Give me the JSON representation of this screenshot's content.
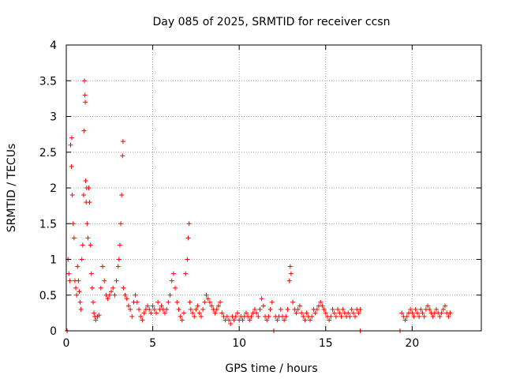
{
  "chart_data": {
    "type": "scatter",
    "title": "Day 085 of 2025, SRMTID for receiver ccsn",
    "xlabel": "GPS time / hours",
    "ylabel": "SRMTID / TECUs",
    "xlim": [
      0,
      24
    ],
    "ylim": [
      0,
      4
    ],
    "x_ticks": [
      0,
      5,
      10,
      15,
      20
    ],
    "x_tick_labels": [
      "0",
      "5",
      "10",
      "15",
      "20"
    ],
    "y_ticks": [
      0,
      0.5,
      1,
      1.5,
      2,
      2.5,
      3,
      3.5,
      4
    ],
    "y_tick_labels": [
      "0",
      "0.5",
      "1",
      "1.5",
      "2",
      "2.5",
      "3",
      "3.5",
      "4"
    ],
    "grid": true,
    "marker": "+",
    "color": "#ff0000",
    "series": [
      {
        "name": "SRMTID",
        "points": [
          [
            0.05,
            0.0
          ],
          [
            0.1,
            1.0
          ],
          [
            0.15,
            0.8
          ],
          [
            0.2,
            0.7
          ],
          [
            0.25,
            2.6
          ],
          [
            0.3,
            2.3
          ],
          [
            0.32,
            2.7
          ],
          [
            0.35,
            1.9
          ],
          [
            0.4,
            1.5
          ],
          [
            0.45,
            1.3
          ],
          [
            0.5,
            0.7
          ],
          [
            0.55,
            0.6
          ],
          [
            0.6,
            0.5
          ],
          [
            0.65,
            0.9
          ],
          [
            0.7,
            0.7
          ],
          [
            0.75,
            0.55
          ],
          [
            0.8,
            0.4
          ],
          [
            0.85,
            0.3
          ],
          [
            0.9,
            1.0
          ],
          [
            0.95,
            1.2
          ],
          [
            1.0,
            1.9
          ],
          [
            1.02,
            2.8
          ],
          [
            1.05,
            3.5
          ],
          [
            1.08,
            3.3
          ],
          [
            1.1,
            3.2
          ],
          [
            1.12,
            2.1
          ],
          [
            1.15,
            1.8
          ],
          [
            1.18,
            2.0
          ],
          [
            1.2,
            1.5
          ],
          [
            1.25,
            1.3
          ],
          [
            1.3,
            2.0
          ],
          [
            1.35,
            1.8
          ],
          [
            1.4,
            1.2
          ],
          [
            1.45,
            0.8
          ],
          [
            1.5,
            0.6
          ],
          [
            1.55,
            0.4
          ],
          [
            1.6,
            0.25
          ],
          [
            1.65,
            0.2
          ],
          [
            1.7,
            0.15
          ],
          [
            1.8,
            0.2
          ],
          [
            1.9,
            0.22
          ],
          [
            2.0,
            0.6
          ],
          [
            2.1,
            0.9
          ],
          [
            2.2,
            0.7
          ],
          [
            2.3,
            0.5
          ],
          [
            2.4,
            0.45
          ],
          [
            2.5,
            0.5
          ],
          [
            2.6,
            0.55
          ],
          [
            2.7,
            0.6
          ],
          [
            2.8,
            0.5
          ],
          [
            2.9,
            0.7
          ],
          [
            3.0,
            0.9
          ],
          [
            3.05,
            1.0
          ],
          [
            3.1,
            1.2
          ],
          [
            3.15,
            1.5
          ],
          [
            3.2,
            1.9
          ],
          [
            3.25,
            2.45
          ],
          [
            3.28,
            2.65
          ],
          [
            3.3,
            0.6
          ],
          [
            3.4,
            0.5
          ],
          [
            3.5,
            0.45
          ],
          [
            3.6,
            0.35
          ],
          [
            3.7,
            0.3
          ],
          [
            3.8,
            0.2
          ],
          [
            3.9,
            0.4
          ],
          [
            4.0,
            0.5
          ],
          [
            4.1,
            0.4
          ],
          [
            4.2,
            0.3
          ],
          [
            4.3,
            0.2
          ],
          [
            4.4,
            0.15
          ],
          [
            4.5,
            0.25
          ],
          [
            4.6,
            0.3
          ],
          [
            4.7,
            0.35
          ],
          [
            4.8,
            0.3
          ],
          [
            4.9,
            0.25
          ],
          [
            5.0,
            0.35
          ],
          [
            5.1,
            0.3
          ],
          [
            5.2,
            0.25
          ],
          [
            5.3,
            0.4
          ],
          [
            5.4,
            0.3
          ],
          [
            5.5,
            0.35
          ],
          [
            5.6,
            0.3
          ],
          [
            5.7,
            0.25
          ],
          [
            5.8,
            0.3
          ],
          [
            5.9,
            0.4
          ],
          [
            6.0,
            0.5
          ],
          [
            6.1,
            0.7
          ],
          [
            6.2,
            0.8
          ],
          [
            6.3,
            0.6
          ],
          [
            6.4,
            0.4
          ],
          [
            6.5,
            0.3
          ],
          [
            6.6,
            0.2
          ],
          [
            6.7,
            0.15
          ],
          [
            6.8,
            0.25
          ],
          [
            6.9,
            0.8
          ],
          [
            7.0,
            1.0
          ],
          [
            7.05,
            1.3
          ],
          [
            7.1,
            1.5
          ],
          [
            7.15,
            0.4
          ],
          [
            7.2,
            0.3
          ],
          [
            7.3,
            0.25
          ],
          [
            7.4,
            0.2
          ],
          [
            7.5,
            0.3
          ],
          [
            7.6,
            0.35
          ],
          [
            7.7,
            0.25
          ],
          [
            7.8,
            0.2
          ],
          [
            7.9,
            0.3
          ],
          [
            8.0,
            0.4
          ],
          [
            8.1,
            0.5
          ],
          [
            8.2,
            0.45
          ],
          [
            8.3,
            0.4
          ],
          [
            8.4,
            0.35
          ],
          [
            8.5,
            0.3
          ],
          [
            8.6,
            0.25
          ],
          [
            8.7,
            0.3
          ],
          [
            8.8,
            0.35
          ],
          [
            8.9,
            0.4
          ],
          [
            9.0,
            0.25
          ],
          [
            9.1,
            0.2
          ],
          [
            9.2,
            0.15
          ],
          [
            9.3,
            0.2
          ],
          [
            9.4,
            0.15
          ],
          [
            9.5,
            0.1
          ],
          [
            9.6,
            0.2
          ],
          [
            9.7,
            0.15
          ],
          [
            9.8,
            0.2
          ],
          [
            9.9,
            0.25
          ],
          [
            10.0,
            0.15
          ],
          [
            10.1,
            0.2
          ],
          [
            10.2,
            0.15
          ],
          [
            10.3,
            0.2
          ],
          [
            10.4,
            0.25
          ],
          [
            10.5,
            0.2
          ],
          [
            10.6,
            0.15
          ],
          [
            10.7,
            0.2
          ],
          [
            10.8,
            0.25
          ],
          [
            10.9,
            0.3
          ],
          [
            11.0,
            0.25
          ],
          [
            11.1,
            0.2
          ],
          [
            11.2,
            0.3
          ],
          [
            11.3,
            0.45
          ],
          [
            11.4,
            0.35
          ],
          [
            11.5,
            0.2
          ],
          [
            11.6,
            0.15
          ],
          [
            11.7,
            0.2
          ],
          [
            11.8,
            0.3
          ],
          [
            11.9,
            0.4
          ],
          [
            12.0,
            0.0
          ],
          [
            12.1,
            0.2
          ],
          [
            12.2,
            0.15
          ],
          [
            12.3,
            0.2
          ],
          [
            12.4,
            0.3
          ],
          [
            12.5,
            0.2
          ],
          [
            12.6,
            0.15
          ],
          [
            12.7,
            0.2
          ],
          [
            12.8,
            0.3
          ],
          [
            12.9,
            0.7
          ],
          [
            12.95,
            0.9
          ],
          [
            13.0,
            0.8
          ],
          [
            13.1,
            0.4
          ],
          [
            13.2,
            0.3
          ],
          [
            13.3,
            0.25
          ],
          [
            13.4,
            0.3
          ],
          [
            13.5,
            0.35
          ],
          [
            13.6,
            0.25
          ],
          [
            13.7,
            0.2
          ],
          [
            13.8,
            0.15
          ],
          [
            13.9,
            0.25
          ],
          [
            14.0,
            0.2
          ],
          [
            14.1,
            0.15
          ],
          [
            14.2,
            0.2
          ],
          [
            14.3,
            0.3
          ],
          [
            14.4,
            0.25
          ],
          [
            14.5,
            0.3
          ],
          [
            14.6,
            0.35
          ],
          [
            14.7,
            0.4
          ],
          [
            14.8,
            0.35
          ],
          [
            14.9,
            0.3
          ],
          [
            15.0,
            0.25
          ],
          [
            15.1,
            0.2
          ],
          [
            15.2,
            0.15
          ],
          [
            15.3,
            0.2
          ],
          [
            15.4,
            0.3
          ],
          [
            15.5,
            0.25
          ],
          [
            15.6,
            0.2
          ],
          [
            15.7,
            0.3
          ],
          [
            15.8,
            0.25
          ],
          [
            15.9,
            0.2
          ],
          [
            16.0,
            0.3
          ],
          [
            16.1,
            0.25
          ],
          [
            16.2,
            0.2
          ],
          [
            16.3,
            0.25
          ],
          [
            16.4,
            0.2
          ],
          [
            16.5,
            0.3
          ],
          [
            16.6,
            0.25
          ],
          [
            16.7,
            0.2
          ],
          [
            16.8,
            0.3
          ],
          [
            16.9,
            0.25
          ],
          [
            17.0,
            0.0
          ],
          [
            17.0,
            0.3
          ],
          [
            19.3,
            0.0
          ],
          [
            19.4,
            0.25
          ],
          [
            19.5,
            0.2
          ],
          [
            19.6,
            0.15
          ],
          [
            19.7,
            0.2
          ],
          [
            19.8,
            0.25
          ],
          [
            19.9,
            0.3
          ],
          [
            20.0,
            0.25
          ],
          [
            20.1,
            0.2
          ],
          [
            20.2,
            0.3
          ],
          [
            20.3,
            0.25
          ],
          [
            20.4,
            0.2
          ],
          [
            20.5,
            0.3
          ],
          [
            20.6,
            0.25
          ],
          [
            20.7,
            0.2
          ],
          [
            20.8,
            0.3
          ],
          [
            20.9,
            0.35
          ],
          [
            21.0,
            0.3
          ],
          [
            21.1,
            0.25
          ],
          [
            21.2,
            0.2
          ],
          [
            21.3,
            0.25
          ],
          [
            21.4,
            0.3
          ],
          [
            21.5,
            0.25
          ],
          [
            21.6,
            0.2
          ],
          [
            21.7,
            0.25
          ],
          [
            21.8,
            0.3
          ],
          [
            21.9,
            0.35
          ],
          [
            22.0,
            0.25
          ],
          [
            22.1,
            0.2
          ],
          [
            22.2,
            0.25
          ]
        ]
      }
    ]
  }
}
